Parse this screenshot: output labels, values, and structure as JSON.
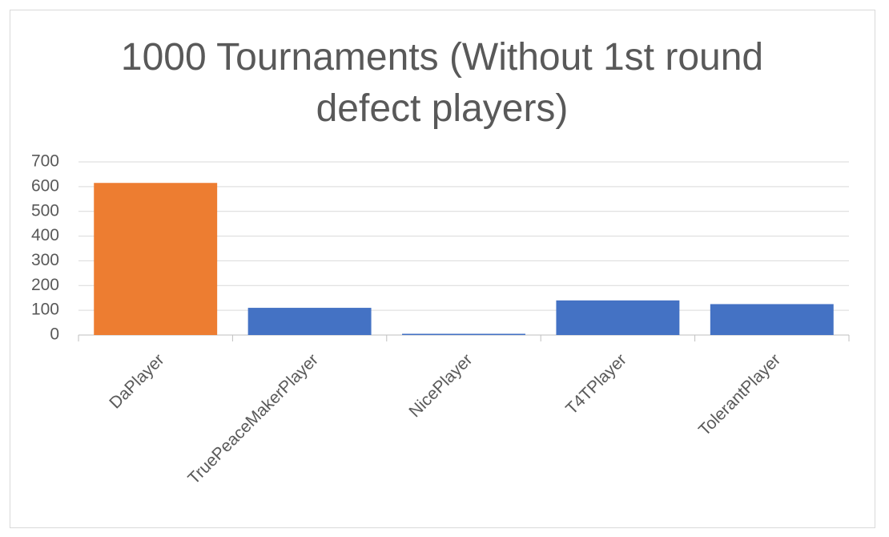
{
  "chart_data": {
    "type": "bar",
    "title": "1000 Tournaments (Without 1st round defect players)",
    "categories": [
      "DaPlayer",
      "TruePeaceMakerPlayer",
      "NicePlayer",
      "T4TPlayer",
      "TolerantPlayer"
    ],
    "values": [
      615,
      110,
      5,
      140,
      125
    ],
    "colors": [
      "#ed7d31",
      "#4472c4",
      "#4472c4",
      "#4472c4",
      "#4472c4"
    ],
    "ylim": [
      0,
      700
    ],
    "yticks": [
      0,
      100,
      200,
      300,
      400,
      500,
      600,
      700
    ],
    "grid": true
  }
}
